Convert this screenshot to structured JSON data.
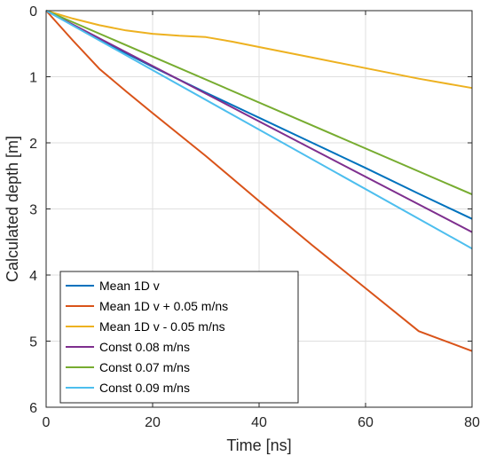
{
  "chart_data": {
    "type": "line",
    "xlabel": "Time [ns]",
    "ylabel": "Calculated depth [m]",
    "xlim": [
      0,
      80
    ],
    "ylim": [
      0,
      6
    ],
    "y_reversed": true,
    "grid": true,
    "legend_position": "bottom-left",
    "x_ticks": [
      0,
      20,
      40,
      60,
      80
    ],
    "y_ticks": [
      0,
      1,
      2,
      3,
      4,
      5,
      6
    ],
    "series": [
      {
        "name": "Mean 1D v",
        "color": "#0072BD",
        "x": [
          0,
          10,
          20,
          30,
          40,
          50,
          60,
          70,
          80
        ],
        "y": [
          0,
          0.44,
          0.85,
          1.24,
          1.62,
          2.0,
          2.38,
          2.77,
          3.15
        ]
      },
      {
        "name": "Mean 1D v + 0.05 m/ns",
        "color": "#D95319",
        "x": [
          0,
          5,
          10,
          15,
          20,
          30,
          40,
          50,
          60,
          70,
          80
        ],
        "y": [
          0,
          0.45,
          0.88,
          1.22,
          1.55,
          2.2,
          2.88,
          3.55,
          4.2,
          4.85,
          5.15
        ]
      },
      {
        "name": "Mean 1D v - 0.05 m/ns",
        "color": "#EDB120",
        "x": [
          0,
          5,
          10,
          15,
          20,
          25,
          30,
          35,
          40,
          50,
          60,
          70,
          80
        ],
        "y": [
          0,
          0.12,
          0.22,
          0.3,
          0.35,
          0.38,
          0.4,
          0.47,
          0.55,
          0.71,
          0.87,
          1.03,
          1.17
        ]
      },
      {
        "name": "Const 0.08 m/ns",
        "color": "#7E2F8E",
        "x": [
          0,
          80
        ],
        "y": [
          0,
          3.35
        ]
      },
      {
        "name": "Const 0.07 m/ns",
        "color": "#77AC30",
        "x": [
          0,
          80
        ],
        "y": [
          0,
          2.78
        ]
      },
      {
        "name": "Const 0.09 m/ns",
        "color": "#4DBEEE",
        "x": [
          0,
          80
        ],
        "y": [
          0,
          3.6
        ]
      }
    ]
  }
}
